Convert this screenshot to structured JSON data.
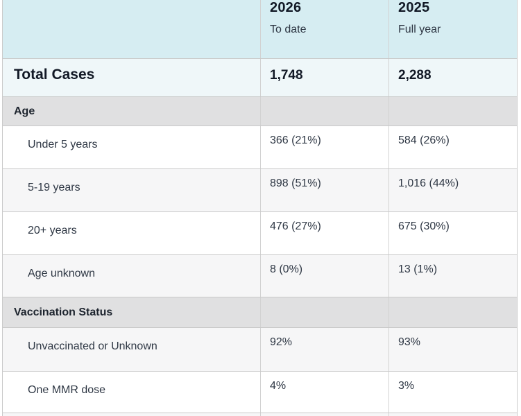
{
  "table": {
    "name": "measles-cases-summary-table",
    "header": {
      "columns": [
        {
          "year": "2026",
          "period": "To date"
        },
        {
          "year": "2025",
          "period": "Full year"
        }
      ]
    },
    "rows": [
      {
        "type": "total",
        "label": "Total Cases",
        "values": [
          "1,748",
          "2,288"
        ]
      },
      {
        "type": "section",
        "label": "Age",
        "values": [
          "",
          ""
        ]
      },
      {
        "type": "data",
        "label": "Under 5 years",
        "values": [
          "366 (21%)",
          "584 (26%)"
        ]
      },
      {
        "type": "data",
        "label": "5-19 years",
        "values": [
          "898 (51%)",
          "1,016 (44%)"
        ]
      },
      {
        "type": "data",
        "label": "20+ years",
        "values": [
          "476 (27%)",
          "675 (30%)"
        ]
      },
      {
        "type": "data",
        "label": "Age unknown",
        "values": [
          "8 (0%)",
          "13 (1%)"
        ]
      },
      {
        "type": "section",
        "label": "Vaccination Status",
        "values": [
          "",
          ""
        ]
      },
      {
        "type": "data",
        "label": "Unvaccinated or Unknown",
        "values": [
          "92%",
          "93%"
        ]
      },
      {
        "type": "data",
        "label": "One MMR dose",
        "values": [
          "4%",
          "3%"
        ]
      }
    ]
  },
  "colors": {
    "header_bg": "#d6edf2",
    "total_row_bg": "#eff7f9",
    "section_bg": "#e0e0e1",
    "alt_row_bg": "#f6f6f7",
    "border": "#c9c9c9",
    "text_bold": "#121926",
    "text_regular": "#2e3744"
  }
}
